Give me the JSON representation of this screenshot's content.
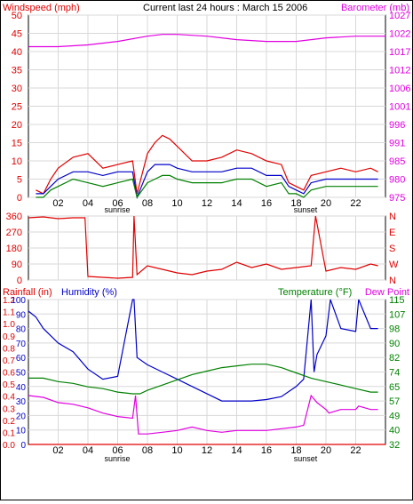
{
  "colors": {
    "red": "#e00000",
    "magenta": "#e000e0",
    "blue": "#0000c8",
    "green": "#008000",
    "axis": "#000000"
  },
  "chart_data": [
    {
      "type": "line",
      "title": "Current last 24 hours : March 15 2006",
      "ylabel": "Windspeed (mph)",
      "y2label": "Barometer (mb)",
      "x_ticks": [
        "02",
        "04",
        "06",
        "08",
        "10",
        "12",
        "14",
        "16",
        "18",
        "20",
        "22"
      ],
      "x_annotations": [
        "sunrise",
        "sunset"
      ],
      "y_ticks": [
        0,
        5,
        10,
        15,
        20,
        25,
        30,
        35,
        40,
        45,
        50
      ],
      "y2_ticks": [
        975,
        980,
        985,
        991,
        996,
        1001,
        1006,
        1012,
        1017,
        1022,
        1027
      ],
      "ylim": [
        0,
        50
      ],
      "y2lim": [
        975,
        1027
      ],
      "xlim": [
        0,
        24
      ],
      "grid": true,
      "series": [
        {
          "role": "gust",
          "axis": "left",
          "color": "red",
          "x": [
            0.5,
            1,
            1.5,
            2,
            3,
            4,
            5,
            6,
            7,
            7.3,
            8,
            8.5,
            9,
            9.5,
            10,
            11,
            12,
            13,
            14,
            15,
            16,
            17,
            17.5,
            18,
            18.5,
            19,
            20,
            21,
            22,
            23,
            23.5
          ],
          "y": [
            2,
            1,
            5,
            8,
            11,
            12,
            8,
            9,
            10,
            1,
            12,
            15,
            17,
            16,
            14,
            10,
            10,
            11,
            13,
            12,
            10,
            9,
            4,
            3,
            2,
            6,
            7,
            8,
            7,
            8,
            7
          ]
        },
        {
          "role": "average",
          "axis": "left",
          "color": "blue",
          "x": [
            0.5,
            1,
            1.5,
            2,
            3,
            4,
            5,
            6,
            7,
            7.3,
            8,
            8.5,
            9,
            9.5,
            10,
            11,
            12,
            13,
            14,
            15,
            16,
            17,
            17.5,
            18,
            18.5,
            19,
            20,
            21,
            22,
            23,
            23.5
          ],
          "y": [
            1,
            1,
            3,
            5,
            7,
            7,
            6,
            7,
            7,
            0,
            7,
            9,
            9,
            9,
            8,
            7,
            7,
            7,
            8,
            8,
            6,
            6,
            3,
            2,
            1,
            4,
            5,
            5,
            5,
            5,
            5
          ]
        },
        {
          "role": "minimum",
          "axis": "left",
          "color": "green",
          "x": [
            0.5,
            1,
            1.5,
            2,
            3,
            4,
            5,
            6,
            7,
            7.3,
            8,
            8.5,
            9,
            9.5,
            10,
            11,
            12,
            13,
            14,
            15,
            16,
            17,
            17.5,
            18,
            18.5,
            19,
            20,
            21,
            22,
            23,
            23.5
          ],
          "y": [
            0,
            0,
            2,
            3,
            5,
            4,
            3,
            4,
            5,
            0,
            4,
            5,
            6,
            6,
            5,
            4,
            4,
            4,
            5,
            5,
            3,
            4,
            1,
            1,
            0,
            2,
            3,
            3,
            3,
            3,
            3
          ]
        },
        {
          "role": "barometer",
          "axis": "right",
          "color": "magenta",
          "x": [
            0,
            2,
            4,
            6,
            8,
            9,
            10,
            12,
            14,
            16,
            18,
            20,
            22,
            24
          ],
          "y": [
            1018,
            1018,
            1018.5,
            1019.5,
            1021,
            1021.5,
            1021.5,
            1021,
            1020,
            1019.5,
            1019.5,
            1020.5,
            1021,
            1021
          ]
        }
      ]
    },
    {
      "type": "line",
      "ylabel": "",
      "y_ticks": [
        0,
        90,
        180,
        270,
        360
      ],
      "y2_ticks": [
        "N",
        "W",
        "S",
        "E",
        "N"
      ],
      "ylim": [
        0,
        360
      ],
      "xlim": [
        0,
        24
      ],
      "grid": true,
      "series": [
        {
          "role": "wind_direction",
          "color": "red",
          "x": [
            0,
            1,
            2,
            3,
            3.8,
            4,
            5,
            6,
            7,
            7.1,
            7.3,
            8,
            9,
            10,
            11,
            12,
            13,
            14,
            15,
            16,
            17,
            18,
            19,
            19.3,
            20,
            21,
            22,
            23,
            23.5
          ],
          "y": [
            350,
            355,
            345,
            350,
            350,
            20,
            15,
            10,
            15,
            360,
            30,
            80,
            60,
            40,
            30,
            50,
            60,
            100,
            70,
            90,
            60,
            70,
            80,
            360,
            50,
            70,
            60,
            90,
            80
          ]
        }
      ]
    },
    {
      "type": "line",
      "ylabel": "Rainfall (in)",
      "ylabel2": "Humidity (%)",
      "y2label": "Temperature (°F)",
      "y2label2": "Dew Point",
      "x_ticks": [
        "02",
        "04",
        "06",
        "08",
        "10",
        "12",
        "14",
        "16",
        "18",
        "20",
        "22"
      ],
      "x_annotations": [
        "sunrise",
        "sunset"
      ],
      "y_ticks_rain": [
        0.0,
        0.1,
        0.2,
        0.3,
        0.4,
        0.5,
        0.6,
        0.7,
        0.8,
        0.9,
        1.0,
        1.1,
        1.2
      ],
      "y_ticks_humidity": [
        0,
        10,
        20,
        30,
        40,
        50,
        60,
        70,
        80,
        90,
        100
      ],
      "y2_ticks": [
        32,
        40,
        49,
        57,
        65,
        74,
        82,
        90,
        98,
        107,
        115
      ],
      "ylim_humidity": [
        0,
        100
      ],
      "y2lim": [
        32,
        115
      ],
      "xlim": [
        0,
        24
      ],
      "grid": true,
      "series": [
        {
          "role": "rainfall",
          "axis": "left-rain",
          "color": "red",
          "x": [
            0,
            24
          ],
          "y": [
            0.0,
            0.0
          ]
        },
        {
          "role": "humidity",
          "axis": "left-humidity",
          "color": "blue",
          "x": [
            0,
            0.5,
            1,
            2,
            3,
            4,
            5,
            6,
            7,
            7.1,
            7.3,
            8,
            9,
            10,
            11,
            12,
            13,
            14,
            15,
            16,
            17,
            18,
            18.5,
            19,
            19.2,
            19.4,
            20,
            20.3,
            21,
            22,
            22.2,
            23,
            23.5
          ],
          "y": [
            92,
            88,
            80,
            70,
            64,
            52,
            45,
            47,
            100,
            100,
            60,
            55,
            50,
            45,
            40,
            35,
            30,
            30,
            30,
            31,
            33,
            40,
            45,
            100,
            50,
            62,
            75,
            100,
            80,
            78,
            100,
            80,
            80
          ]
        },
        {
          "role": "temperature",
          "axis": "right",
          "color": "green",
          "x": [
            0,
            1,
            2,
            3,
            4,
            5,
            6,
            7,
            7.5,
            8,
            9,
            10,
            11,
            12,
            13,
            14,
            15,
            16,
            17,
            18,
            19,
            20,
            21,
            22,
            23,
            23.5
          ],
          "y": [
            70,
            70,
            68,
            67,
            65,
            64,
            62,
            61,
            61,
            63,
            66,
            69,
            72,
            74,
            76,
            77,
            78,
            78,
            76,
            73,
            70,
            68,
            66,
            64,
            62,
            62
          ]
        },
        {
          "role": "dew_point",
          "axis": "right",
          "color": "magenta",
          "x": [
            0,
            1,
            2,
            3,
            4,
            5,
            6,
            7,
            7.2,
            7.4,
            8,
            9,
            10,
            11,
            12,
            13,
            14,
            15,
            16,
            17,
            18,
            18.5,
            19,
            19.4,
            20,
            20.2,
            21,
            22,
            22.2,
            23,
            23.5
          ],
          "y": [
            60,
            59,
            56,
            55,
            53,
            50,
            48,
            47,
            60,
            38,
            38,
            39,
            40,
            42,
            40,
            39,
            40,
            40,
            40,
            41,
            42,
            43,
            60,
            56,
            52,
            50,
            52,
            52,
            54,
            52,
            52
          ]
        }
      ]
    }
  ]
}
